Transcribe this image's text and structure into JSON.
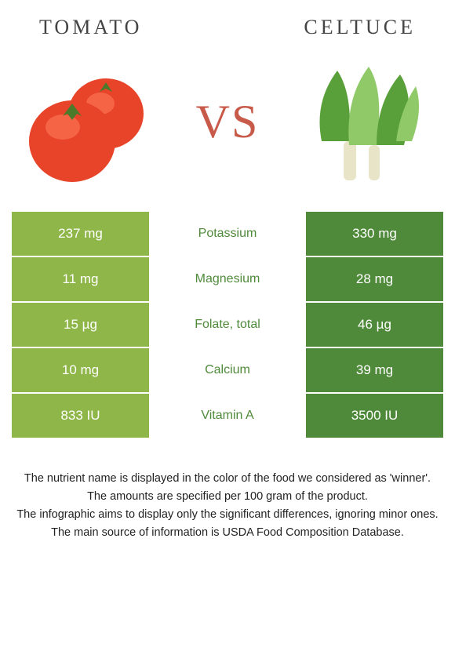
{
  "left_food": {
    "name": "TOMATO",
    "color": "#8fb648",
    "image_color_main": "#e8442a",
    "image_color_highlight": "#ff7a5a",
    "image_color_stem": "#4a7a2a"
  },
  "right_food": {
    "name": "CELTUCE",
    "color": "#4f8a3a",
    "image_color_leaf": "#5aa03a",
    "image_color_leaf_light": "#8fc968",
    "image_color_stem": "#e8e4c8"
  },
  "vs_label": "VS",
  "vs_color": "#c85a4a",
  "nutrients": [
    {
      "name": "Potassium",
      "left": "237 mg",
      "right": "330 mg",
      "winner": "right"
    },
    {
      "name": "Magnesium",
      "left": "11 mg",
      "right": "28 mg",
      "winner": "right"
    },
    {
      "name": "Folate, total",
      "left": "15 µg",
      "right": "46 µg",
      "winner": "right"
    },
    {
      "name": "Calcium",
      "left": "10 mg",
      "right": "39 mg",
      "winner": "right"
    },
    {
      "name": "Vitamin A",
      "left": "833 IU",
      "right": "3500 IU",
      "winner": "right"
    }
  ],
  "footer_lines": [
    "The nutrient name is displayed in the color of the food we considered as 'winner'.",
    "The amounts are specified per 100 gram of the product.",
    "The infographic aims to display only the significant differences, ignoring minor ones.",
    "The main source of information is USDA Food Composition Database."
  ]
}
